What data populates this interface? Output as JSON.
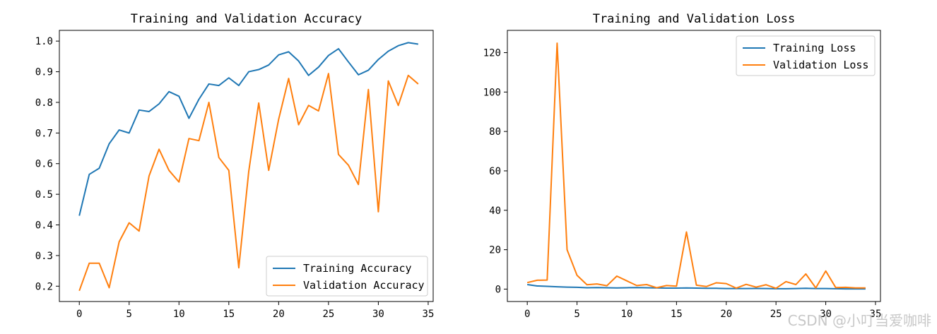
{
  "chart_data": [
    {
      "type": "line",
      "title": "Training and Validation Accuracy",
      "xlabel": "",
      "ylabel": "",
      "xlim": [
        -2,
        35.5
      ],
      "ylim": [
        0.15,
        1.035
      ],
      "xticks": [
        0,
        5,
        10,
        15,
        20,
        25,
        30,
        35
      ],
      "yticks": [
        0.2,
        0.3,
        0.4,
        0.5,
        0.6,
        0.7,
        0.8,
        0.9,
        1.0
      ],
      "ytick_labels": [
        "0.2",
        "0.3",
        "0.4",
        "0.5",
        "0.6",
        "0.7",
        "0.8",
        "0.9",
        "1.0"
      ],
      "legend": "lower-right",
      "grid": false,
      "x": [
        0,
        1,
        2,
        3,
        4,
        5,
        6,
        7,
        8,
        9,
        10,
        11,
        12,
        13,
        14,
        15,
        16,
        17,
        18,
        19,
        20,
        21,
        22,
        23,
        24,
        25,
        26,
        27,
        28,
        29,
        30,
        31,
        32,
        33,
        34
      ],
      "series": [
        {
          "name": "Training Accuracy",
          "color": "#1f77b4",
          "values": [
            0.43,
            0.565,
            0.585,
            0.665,
            0.71,
            0.7,
            0.775,
            0.77,
            0.795,
            0.835,
            0.82,
            0.748,
            0.81,
            0.86,
            0.855,
            0.88,
            0.855,
            0.9,
            0.907,
            0.922,
            0.955,
            0.965,
            0.935,
            0.888,
            0.915,
            0.953,
            0.975,
            0.932,
            0.89,
            0.905,
            0.94,
            0.967,
            0.985,
            0.995,
            0.99
          ]
        },
        {
          "name": "Validation Accuracy",
          "color": "#ff7f0e",
          "values": [
            0.185,
            0.275,
            0.275,
            0.195,
            0.345,
            0.407,
            0.38,
            0.56,
            0.647,
            0.578,
            0.54,
            0.682,
            0.675,
            0.8,
            0.62,
            0.578,
            0.26,
            0.575,
            0.798,
            0.578,
            0.745,
            0.878,
            0.727,
            0.79,
            0.772,
            0.894,
            0.63,
            0.595,
            0.532,
            0.842,
            0.443,
            0.87,
            0.79,
            0.888,
            0.86
          ]
        }
      ]
    },
    {
      "type": "line",
      "title": "Training and Validation Loss",
      "xlabel": "",
      "ylabel": "",
      "xlim": [
        -2,
        35.5
      ],
      "ylim": [
        -6.3,
        131.3
      ],
      "xticks": [
        0,
        5,
        10,
        15,
        20,
        25,
        30,
        35
      ],
      "yticks": [
        0,
        20,
        40,
        60,
        80,
        100,
        120
      ],
      "ytick_labels": [
        "0",
        "20",
        "40",
        "60",
        "80",
        "100",
        "120"
      ],
      "legend": "top-right",
      "grid": false,
      "x": [
        0,
        1,
        2,
        3,
        4,
        5,
        6,
        7,
        8,
        9,
        10,
        11,
        12,
        13,
        14,
        15,
        16,
        17,
        18,
        19,
        20,
        21,
        22,
        23,
        24,
        25,
        26,
        27,
        28,
        29,
        30,
        31,
        32,
        33,
        34
      ],
      "series": [
        {
          "name": "Training Loss",
          "color": "#1f77b4",
          "values": [
            2.3,
            1.6,
            1.4,
            1.2,
            1.0,
            0.9,
            0.7,
            0.8,
            0.7,
            0.6,
            0.7,
            0.8,
            0.7,
            0.6,
            0.5,
            0.5,
            0.6,
            0.5,
            0.4,
            0.4,
            0.3,
            0.3,
            0.3,
            0.35,
            0.3,
            0.2,
            0.2,
            0.3,
            0.4,
            0.3,
            0.3,
            0.2,
            0.1,
            0.1,
            0.1
          ]
        },
        {
          "name": "Validation Loss",
          "color": "#ff7f0e",
          "values": [
            3.3,
            4.5,
            4.6,
            124.8,
            20.0,
            7.0,
            2.2,
            2.6,
            1.7,
            6.6,
            4.2,
            1.8,
            2.3,
            0.7,
            1.8,
            1.5,
            29.0,
            2.0,
            1.3,
            3.2,
            2.8,
            0.5,
            2.4,
            1.0,
            2.2,
            0.4,
            3.8,
            2.3,
            7.7,
            0.6,
            9.2,
            0.8,
            0.9,
            0.6,
            0.6
          ]
        }
      ]
    }
  ],
  "watermark": "CSDN @小叮当爱咖啡"
}
